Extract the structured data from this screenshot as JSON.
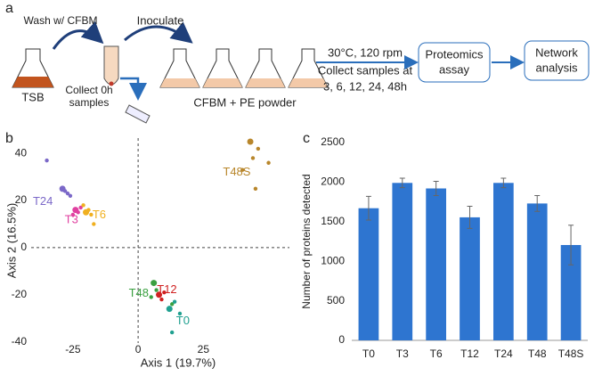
{
  "diagram": {
    "panel_label": "a",
    "wash": "Wash w/ CFBM",
    "inoculate": "Inoculate",
    "tsb": "TSB",
    "collect0": [
      "Collect 0h",
      "samples"
    ],
    "medium": "CFBM + PE powder",
    "conditions": [
      "30°C, 120 rpm",
      "Collect samples at",
      "3, 6, 12, 24, 48h"
    ],
    "proteomics": [
      "Proteomics",
      "assay"
    ],
    "network": [
      "Network",
      "analysis"
    ]
  },
  "chart_data": [
    {
      "type": "scatter",
      "panel_label": "b",
      "x_label": "Axis 1 (19.7%)",
      "y_label": "Axis 2 (16.5%)",
      "xlim": [
        -41,
        58
      ],
      "ylim": [
        -40.5,
        46.5
      ],
      "xticks": [
        -25,
        0,
        25
      ],
      "yticks": [
        -40,
        -20,
        0,
        20,
        40
      ],
      "series": [
        {
          "name": "T24",
          "color": "#7b68c8",
          "x": [
            -29,
            -28,
            -27,
            -26,
            -35
          ],
          "values": [
            25,
            24,
            23,
            22,
            37
          ]
        },
        {
          "name": "T3",
          "color": "#e040a0",
          "x": [
            -24,
            -23,
            -25,
            -22
          ],
          "values": [
            16,
            15,
            14,
            17
          ]
        },
        {
          "name": "T6",
          "color": "#f0b020",
          "x": [
            -20,
            -19,
            -18,
            -21,
            -17
          ],
          "values": [
            15,
            16,
            14,
            18,
            10
          ]
        },
        {
          "name": "T48S",
          "color": "#b8862b",
          "x": [
            43,
            44,
            46,
            40,
            45,
            50
          ],
          "values": [
            45,
            38,
            42,
            33,
            25,
            36
          ]
        },
        {
          "name": "T12",
          "color": "#d02020",
          "x": [
            8,
            9,
            10
          ],
          "values": [
            -20,
            -22,
            -19
          ]
        },
        {
          "name": "T48",
          "color": "#3aa040",
          "x": [
            6,
            7,
            5,
            13
          ],
          "values": [
            -15,
            -18,
            -21,
            -24
          ]
        },
        {
          "name": "T0",
          "color": "#20a090",
          "x": [
            12,
            14,
            16,
            13
          ],
          "values": [
            -26,
            -23,
            -28,
            -36
          ]
        }
      ]
    },
    {
      "type": "bar",
      "panel_label": "c",
      "y_label": "Number of proteins detected",
      "color": "#2e75d0",
      "categories": [
        "T0",
        "T3",
        "T6",
        "T12",
        "T24",
        "T48",
        "T48S"
      ],
      "values": [
        1670,
        1990,
        1920,
        1555,
        1990,
        1730,
        1205
      ],
      "errors": [
        150,
        60,
        90,
        140,
        60,
        100,
        250
      ],
      "ylim": [
        0,
        2500
      ],
      "yticks": [
        0,
        500,
        1000,
        1500,
        2000,
        2500
      ]
    }
  ]
}
